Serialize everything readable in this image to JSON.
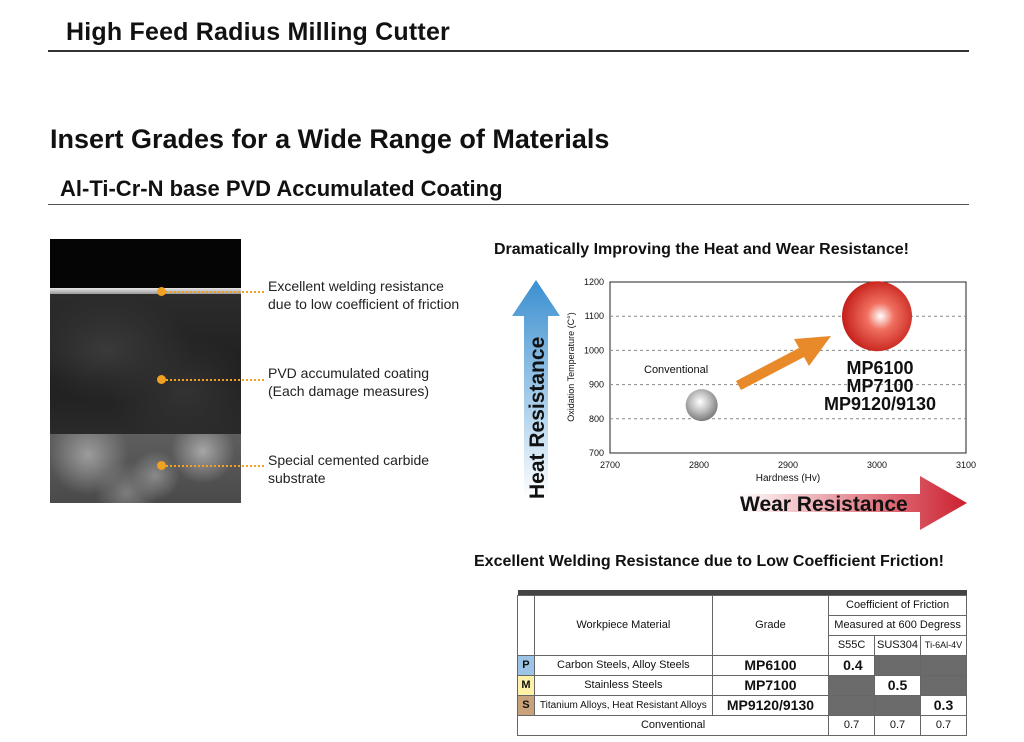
{
  "header": {
    "title": "High Feed Radius Milling Cutter"
  },
  "section": {
    "title": "Insert Grades for a Wide Range of Materials",
    "subtitle": "Al-Ti-Cr-N base PVD Accumulated Coating"
  },
  "micrograph": {
    "callouts": [
      {
        "line1": "Excellent welding resistance",
        "line2": "due to low coefficient of friction"
      },
      {
        "line1": "PVD accumulated coating",
        "line2": "(Each damage measures)"
      },
      {
        "line1": "Special cemented carbide",
        "line2": "substrate"
      }
    ]
  },
  "chart": {
    "title": "Dramatically Improving the Heat and Wear Resistance!",
    "heat_arrow_label": "Heat Resistance",
    "wear_arrow_label": "Wear Resistance",
    "colors": {
      "heat_arrow": "#3a8fd0",
      "wear_arrow": "#cc2030",
      "trend_arrow": "#e8892a",
      "new_grades": "#d42a20",
      "conventional": "#9a9a9a"
    }
  },
  "chart_data": {
    "type": "scatter",
    "xlabel": "Hardness (Hv)",
    "ylabel": "Oxidation Temperature (C°)",
    "xlim": [
      2700,
      3100
    ],
    "ylim": [
      700,
      1200
    ],
    "xticks": [
      "2700",
      "2800",
      "2900",
      "3000",
      "3100"
    ],
    "yticks": [
      "700",
      "800",
      "900",
      "1000",
      "1100",
      "1200"
    ],
    "grid": "horizontal dashed",
    "points": [
      {
        "label": "Conventional",
        "x": 2803,
        "y": 840
      },
      {
        "label": "MP6100\nMP7100\nMP9120/9130",
        "x": 3000,
        "y": 1100
      }
    ],
    "point_labels": {
      "conventional": "Conventional",
      "new": [
        "MP6100",
        "MP7100",
        "MP9120/9130"
      ]
    }
  },
  "table": {
    "title": "Excellent Welding Resistance due to Low Coefficient Friction!",
    "headers": {
      "workpiece": "Workpiece Material",
      "grade": "Grade",
      "cof": "Coefficient of Friction",
      "measured": "Measured at 600 Degress",
      "cols": [
        "S55C",
        "SUS304",
        "Ti-6Al-4V"
      ]
    },
    "rows": [
      {
        "badge": "P",
        "badge_color": "#9dc3e6",
        "material": "Carbon Steels, Alloy Steels",
        "grade": "MP6100",
        "values": [
          "0.4",
          "",
          ""
        ]
      },
      {
        "badge": "M",
        "badge_color": "#fff2a8",
        "material": "Stainless Steels",
        "grade": "MP7100",
        "values": [
          "",
          "0.5",
          ""
        ]
      },
      {
        "badge": "S",
        "badge_color": "#c8a27a",
        "material": "Titanium Alloys, Heat Resistant Alloys",
        "grade": "MP9120/9130",
        "values": [
          "",
          "",
          "0.3"
        ]
      }
    ],
    "conventional": {
      "label": "Conventional",
      "values": [
        "0.7",
        "0.7",
        "0.7"
      ]
    }
  }
}
